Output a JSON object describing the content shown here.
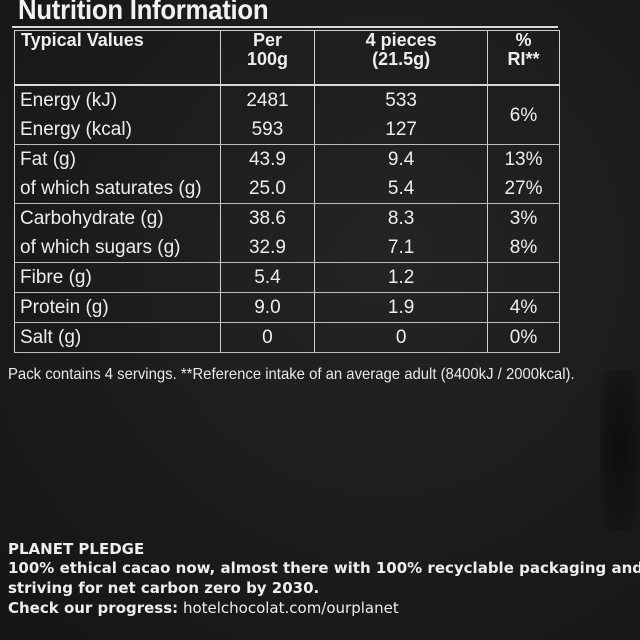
{
  "panel": {
    "title": "Nutrition Information"
  },
  "table": {
    "headers": {
      "typical": "Typical Values",
      "per100_line1": "Per",
      "per100_line2": "100g",
      "pieces_line1": "4 pieces",
      "pieces_line2": "(21.5g)",
      "ri_line1": "%",
      "ri_line2": "RI**"
    },
    "rows": [
      {
        "label": "Energy (kJ)",
        "per100": "2481",
        "pieces": "533",
        "ri": ""
      },
      {
        "label": "Energy (kcal)",
        "per100": "593",
        "pieces": "127",
        "ri": "6%"
      },
      {
        "label": "Fat (g)",
        "per100": "43.9",
        "pieces": "9.4",
        "ri": "13%"
      },
      {
        "label": "of which saturates (g)",
        "per100": "25.0",
        "pieces": "5.4",
        "ri": "27%"
      },
      {
        "label": "Carbohydrate (g)",
        "per100": "38.6",
        "pieces": "8.3",
        "ri": "3%"
      },
      {
        "label": "of which sugars (g)",
        "per100": "32.9",
        "pieces": "7.1",
        "ri": "8%"
      },
      {
        "label": "Fibre (g)",
        "per100": "5.4",
        "pieces": "1.2",
        "ri": ""
      },
      {
        "label": "Protein (g)",
        "per100": "9.0",
        "pieces": "1.9",
        "ri": "4%"
      },
      {
        "label": "Salt (g)",
        "per100": "0",
        "pieces": "0",
        "ri": "0%"
      }
    ]
  },
  "footnote": "Pack contains 4 servings. **Reference intake of an average adult (8400kJ / 2000kcal).",
  "pledge": {
    "heading": "PLANET PLEDGE",
    "line1": "100% ethical cacao now, almost there with 100% recyclable packaging and",
    "line2": "striving for net carbon zero by 2030.",
    "check_label": "Check our progress:",
    "check_url": "hotelchocolat.com/ourplanet"
  }
}
